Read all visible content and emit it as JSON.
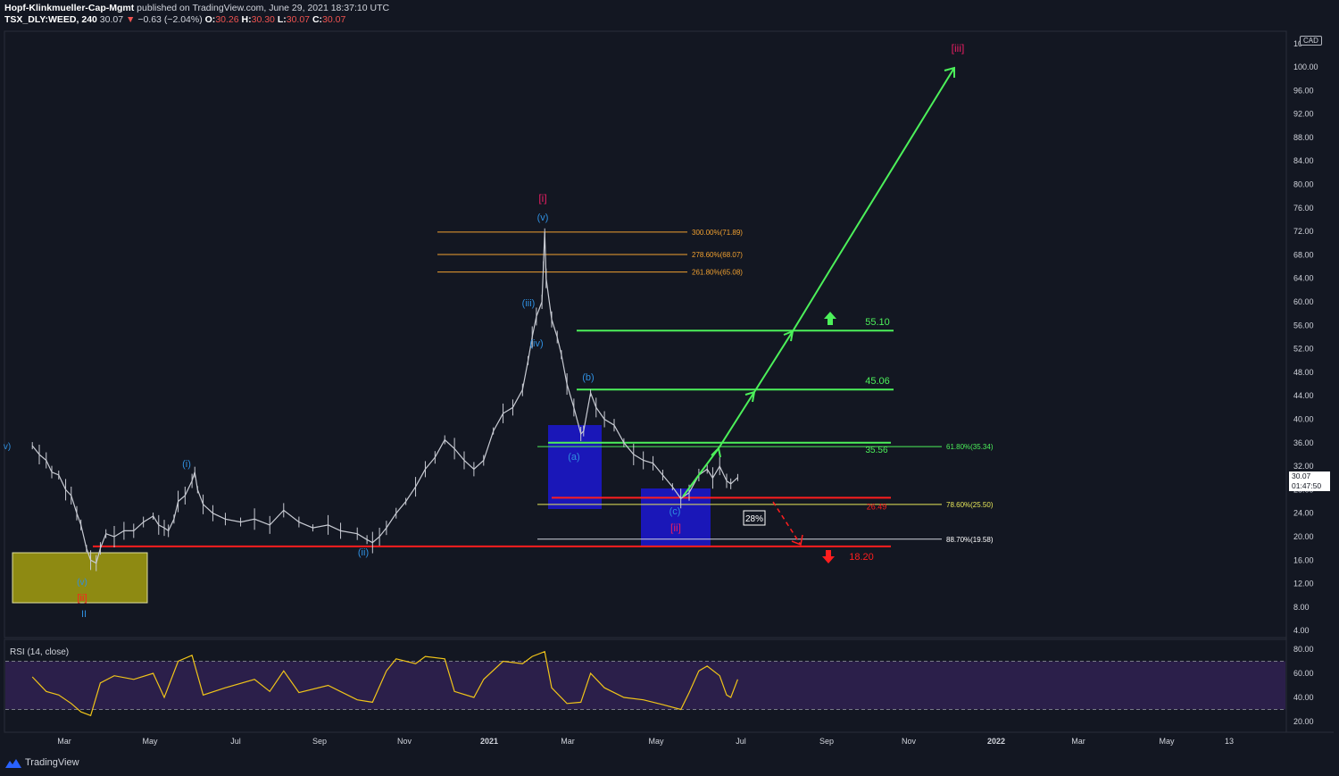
{
  "header": {
    "author": "Hopf-Klinkmueller-Cap-Mgmt",
    "published_text": "published on TradingView.com, June 29, 2021 18:37:10 UTC",
    "symbol": "TSX_DLY:WEED, 240",
    "last": "30.07",
    "change_arrow": "▼",
    "change": "−0.63 (−2.04%)",
    "o_label": "O:",
    "o": "30.26",
    "h_label": "H:",
    "h": "30.30",
    "l_label": "L:",
    "l": "30.07",
    "c_label": "C:",
    "c": "30.07"
  },
  "currency": "CAD",
  "last_price_tag": {
    "price": "30.07",
    "countdown": "01:47:50"
  },
  "price_axis": [
    "100.00",
    "96.00",
    "92.00",
    "88.00",
    "84.00",
    "80.00",
    "76.00",
    "72.00",
    "68.00",
    "64.00",
    "60.00",
    "56.00",
    "52.00",
    "48.00",
    "44.00",
    "40.00",
    "36.00",
    "32.00",
    "28.00",
    "24.00",
    "20.00",
    "16.00",
    "12.00",
    "8.00",
    "4.00"
  ],
  "price_axis_top_partial": "10",
  "rsi": {
    "label": "RSI (14, close)",
    "axis": [
      "80.00",
      "60.00",
      "40.00",
      "20.00"
    ]
  },
  "time_axis": [
    "Mar",
    "May",
    "Jul",
    "Sep",
    "Nov",
    "2021",
    "Mar",
    "May",
    "Jul",
    "Sep",
    "Nov",
    "2022",
    "Mar",
    "May",
    "13"
  ],
  "wave_labels": {
    "iii_big": "[iii]",
    "i_big": "[i]",
    "ii_big": "[ii]",
    "v": "(v)",
    "iii": "(iii)",
    "iv": "(iv)",
    "i": "(i)",
    "ii": "(ii)",
    "a": "(a)",
    "b": "(b)",
    "c": "(c)",
    "v_left": "v)",
    "ii_roman": "II",
    "iv_bottom": "(v)",
    "ii_red": "[ii]"
  },
  "fib_levels": {
    "f300": "300.00%(71.89)",
    "f278": "278.60%(68.07)",
    "f261": "261.80%(65.08)",
    "f618": "61.80%(35.34)",
    "f786": "78.60%(25.50)",
    "f887": "88.70%(19.58)"
  },
  "targets": {
    "t5510": "55.10",
    "t4506": "45.06",
    "t3556": "35.56",
    "t2649": "26.49",
    "t1820": "18.20"
  },
  "pct_box": "28%",
  "brand": "TradingView",
  "colors": {
    "background": "#131722",
    "green": "#4cf05a",
    "red": "#ff1e1e",
    "orange": "#f0a030",
    "wave_blue": "#2f8fe0",
    "wave_pink": "#e91e63",
    "rsi_line": "#f0c419",
    "rsi_band": "#2b1f4a",
    "box_blue": "#1a17b8",
    "box_yellow": "#8e8a12"
  },
  "price_series": [
    [
      "2020-02-07",
      35.5
    ],
    [
      "2020-02-12",
      34.0
    ],
    [
      "2020-02-17",
      33.0
    ],
    [
      "2020-02-21",
      31.0
    ],
    [
      "2020-02-26",
      30.5
    ],
    [
      "2020-03-02",
      28.0
    ],
    [
      "2020-03-06",
      27.0
    ],
    [
      "2020-03-10",
      24.0
    ],
    [
      "2020-03-13",
      22.0
    ],
    [
      "2020-03-17",
      18.0
    ],
    [
      "2020-03-20",
      16.0
    ],
    [
      "2020-03-24",
      15.5
    ],
    [
      "2020-03-27",
      18.0
    ],
    [
      "2020-03-31",
      20.5
    ],
    [
      "2020-04-06",
      20.0
    ],
    [
      "2020-04-13",
      21.0
    ],
    [
      "2020-04-20",
      21.0
    ],
    [
      "2020-04-27",
      22.5
    ],
    [
      "2020-05-04",
      23.5
    ],
    [
      "2020-05-08",
      22.0
    ],
    [
      "2020-05-12",
      21.5
    ],
    [
      "2020-05-15",
      21.0
    ],
    [
      "2020-05-19",
      23.0
    ],
    [
      "2020-05-22",
      26.0
    ],
    [
      "2020-05-27",
      27.0
    ],
    [
      "2020-06-01",
      29.5
    ],
    [
      "2020-06-03",
      31.0
    ],
    [
      "2020-06-05",
      28.0
    ],
    [
      "2020-06-09",
      25.5
    ],
    [
      "2020-06-16",
      24.0
    ],
    [
      "2020-06-25",
      23.0
    ],
    [
      "2020-07-06",
      22.5
    ],
    [
      "2020-07-16",
      23.0
    ],
    [
      "2020-07-27",
      22.0
    ],
    [
      "2020-08-06",
      24.5
    ],
    [
      "2020-08-17",
      22.5
    ],
    [
      "2020-08-27",
      21.5
    ],
    [
      "2020-09-07",
      22.0
    ],
    [
      "2020-09-16",
      21.0
    ],
    [
      "2020-09-28",
      20.5
    ],
    [
      "2020-10-05",
      19.5
    ],
    [
      "2020-10-09",
      19.0
    ],
    [
      "2020-10-14",
      20.0
    ],
    [
      "2020-10-19",
      21.5
    ],
    [
      "2020-10-26",
      24.0
    ],
    [
      "2020-11-02",
      26.0
    ],
    [
      "2020-11-09",
      28.5
    ],
    [
      "2020-11-16",
      31.5
    ],
    [
      "2020-11-23",
      33.5
    ],
    [
      "2020-11-30",
      36.5
    ],
    [
      "2020-12-07",
      35.0
    ],
    [
      "2020-12-14",
      33.0
    ],
    [
      "2020-12-21",
      31.5
    ],
    [
      "2020-12-28",
      33.0
    ],
    [
      "2021-01-04",
      38.0
    ],
    [
      "2021-01-11",
      41.0
    ],
    [
      "2021-01-18",
      42.0
    ],
    [
      "2021-01-25",
      45.0
    ],
    [
      "2021-01-29",
      50.0
    ],
    [
      "2021-02-01",
      54.0
    ],
    [
      "2021-02-04",
      57.5
    ],
    [
      "2021-02-08",
      60.0
    ],
    [
      "2021-02-09",
      66.0
    ],
    [
      "2021-02-10",
      71.9
    ],
    [
      "2021-02-11",
      64.0
    ],
    [
      "2021-02-15",
      57.0
    ],
    [
      "2021-02-19",
      54.0
    ],
    [
      "2021-02-22",
      51.0
    ],
    [
      "2021-02-26",
      46.0
    ],
    [
      "2021-03-03",
      42.0
    ],
    [
      "2021-03-08",
      37.5
    ],
    [
      "2021-03-10",
      38.0
    ],
    [
      "2021-03-15",
      44.5
    ],
    [
      "2021-03-19",
      42.0
    ],
    [
      "2021-03-25",
      40.0
    ],
    [
      "2021-04-01",
      39.0
    ],
    [
      "2021-04-08",
      36.0
    ],
    [
      "2021-04-15",
      34.0
    ],
    [
      "2021-04-22",
      33.0
    ],
    [
      "2021-04-29",
      32.5
    ],
    [
      "2021-05-06",
      30.5
    ],
    [
      "2021-05-13",
      28.5
    ],
    [
      "2021-05-19",
      26.5
    ],
    [
      "2021-05-25",
      27.5
    ],
    [
      "2021-06-01",
      30.5
    ],
    [
      "2021-06-07",
      31.5
    ],
    [
      "2021-06-11",
      30.0
    ],
    [
      "2021-06-16",
      32.0
    ],
    [
      "2021-06-21",
      29.5
    ],
    [
      "2021-06-24",
      29.0
    ],
    [
      "2021-06-29",
      30.07
    ]
  ],
  "rsi_series": [
    [
      "2020-02-07",
      57
    ],
    [
      "2020-02-17",
      45
    ],
    [
      "2020-02-26",
      42
    ],
    [
      "2020-03-06",
      35
    ],
    [
      "2020-03-13",
      28
    ],
    [
      "2020-03-20",
      25
    ],
    [
      "2020-03-27",
      52
    ],
    [
      "2020-04-06",
      58
    ],
    [
      "2020-04-20",
      55
    ],
    [
      "2020-05-04",
      60
    ],
    [
      "2020-05-12",
      40
    ],
    [
      "2020-05-22",
      70
    ],
    [
      "2020-06-01",
      75
    ],
    [
      "2020-06-09",
      42
    ],
    [
      "2020-06-25",
      48
    ],
    [
      "2020-07-16",
      55
    ],
    [
      "2020-07-27",
      45
    ],
    [
      "2020-08-06",
      62
    ],
    [
      "2020-08-17",
      44
    ],
    [
      "2020-09-07",
      50
    ],
    [
      "2020-09-28",
      38
    ],
    [
      "2020-10-09",
      36
    ],
    [
      "2020-10-19",
      62
    ],
    [
      "2020-10-26",
      72
    ],
    [
      "2020-11-09",
      68
    ],
    [
      "2020-11-16",
      74
    ],
    [
      "2020-11-30",
      72
    ],
    [
      "2020-12-07",
      45
    ],
    [
      "2020-12-21",
      40
    ],
    [
      "2020-12-28",
      55
    ],
    [
      "2021-01-11",
      70
    ],
    [
      "2021-01-25",
      68
    ],
    [
      "2021-02-01",
      74
    ],
    [
      "2021-02-10",
      78
    ],
    [
      "2021-02-15",
      48
    ],
    [
      "2021-02-26",
      35
    ],
    [
      "2021-03-08",
      36
    ],
    [
      "2021-03-15",
      60
    ],
    [
      "2021-03-25",
      48
    ],
    [
      "2021-04-08",
      40
    ],
    [
      "2021-04-22",
      38
    ],
    [
      "2021-05-06",
      34
    ],
    [
      "2021-05-19",
      30
    ],
    [
      "2021-05-25",
      44
    ],
    [
      "2021-06-01",
      62
    ],
    [
      "2021-06-07",
      66
    ],
    [
      "2021-06-16",
      58
    ],
    [
      "2021-06-21",
      42
    ],
    [
      "2021-06-24",
      40
    ],
    [
      "2021-06-29",
      55
    ]
  ]
}
